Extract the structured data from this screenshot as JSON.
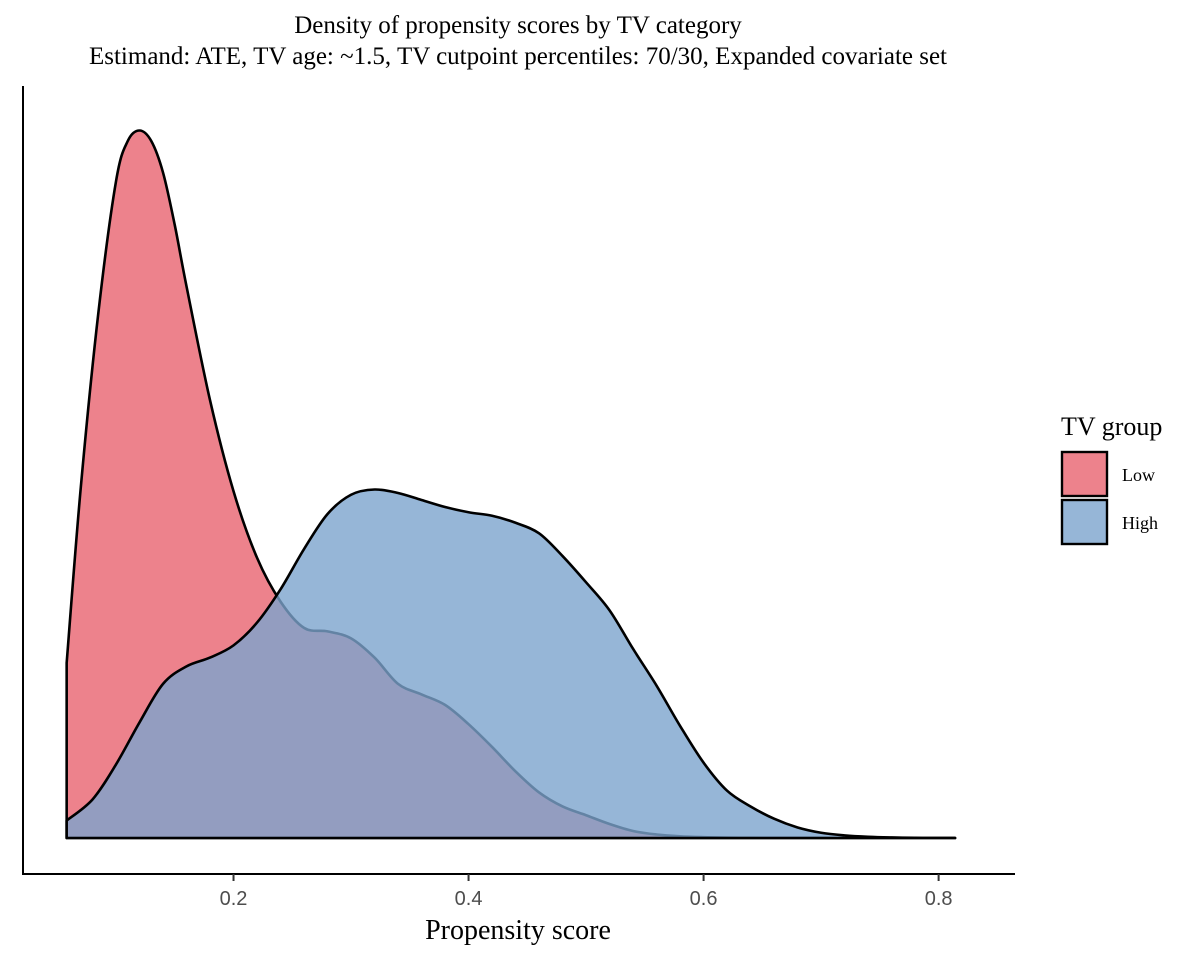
{
  "chart_data": {
    "type": "area",
    "title": "Density of propensity scores by TV category",
    "subtitle": "Estimand: ATE, TV age: ~1.5, TV cutpoint percentiles: 70/30, Expanded covariate set",
    "xlabel": "Propensity score",
    "ylabel": "",
    "xlim": [
      0.02,
      0.865
    ],
    "ylim": [
      0,
      4.1
    ],
    "x_ticks": [
      0.2,
      0.4,
      0.6,
      0.8
    ],
    "x_tick_labels": [
      "0.2",
      "0.4",
      "0.6",
      "0.8"
    ],
    "y_ticks_shown": false,
    "grid": false,
    "legend": {
      "title": "TV group",
      "position": "right",
      "entries": [
        {
          "label": "Low",
          "color": "#e8636f"
        },
        {
          "label": "High",
          "color": "#7ca4cd"
        }
      ]
    },
    "series": [
      {
        "name": "Low",
        "color": "#e8636f",
        "opacity": 0.8,
        "x": [
          0.058,
          0.07,
          0.085,
          0.1,
          0.11,
          0.12,
          0.13,
          0.14,
          0.15,
          0.16,
          0.18,
          0.2,
          0.22,
          0.24,
          0.26,
          0.28,
          0.3,
          0.32,
          0.34,
          0.36,
          0.38,
          0.4,
          0.42,
          0.44,
          0.46,
          0.48,
          0.5,
          0.52,
          0.54,
          0.56,
          0.58,
          0.6,
          0.62,
          0.64,
          0.66,
          0.68,
          0.7,
          0.72,
          0.74,
          0.76,
          0.78,
          0.8,
          0.814
        ],
        "y": [
          1.0,
          2.0,
          3.0,
          3.75,
          3.98,
          4.04,
          3.98,
          3.8,
          3.5,
          3.15,
          2.5,
          1.98,
          1.6,
          1.35,
          1.2,
          1.18,
          1.14,
          1.03,
          0.88,
          0.82,
          0.76,
          0.65,
          0.52,
          0.38,
          0.26,
          0.18,
          0.13,
          0.08,
          0.04,
          0.02,
          0.01,
          0.005,
          0.002,
          0.001,
          0.0005,
          0.0002,
          0.0001,
          0,
          0,
          0,
          0,
          0,
          0
        ]
      },
      {
        "name": "High",
        "color": "#7ca4cd",
        "opacity": 0.8,
        "x": [
          0.058,
          0.08,
          0.1,
          0.12,
          0.14,
          0.16,
          0.18,
          0.2,
          0.22,
          0.24,
          0.26,
          0.28,
          0.3,
          0.32,
          0.34,
          0.36,
          0.38,
          0.4,
          0.42,
          0.44,
          0.46,
          0.48,
          0.5,
          0.52,
          0.54,
          0.56,
          0.58,
          0.6,
          0.62,
          0.64,
          0.66,
          0.68,
          0.7,
          0.72,
          0.74,
          0.76,
          0.78,
          0.8,
          0.814
        ],
        "y": [
          0.1,
          0.22,
          0.42,
          0.66,
          0.88,
          0.98,
          1.03,
          1.1,
          1.23,
          1.42,
          1.65,
          1.85,
          1.96,
          1.99,
          1.97,
          1.93,
          1.89,
          1.86,
          1.84,
          1.8,
          1.74,
          1.61,
          1.46,
          1.3,
          1.08,
          0.87,
          0.64,
          0.43,
          0.27,
          0.18,
          0.11,
          0.06,
          0.03,
          0.015,
          0.007,
          0.003,
          0.001,
          0.0005,
          0.0002
        ]
      }
    ]
  }
}
